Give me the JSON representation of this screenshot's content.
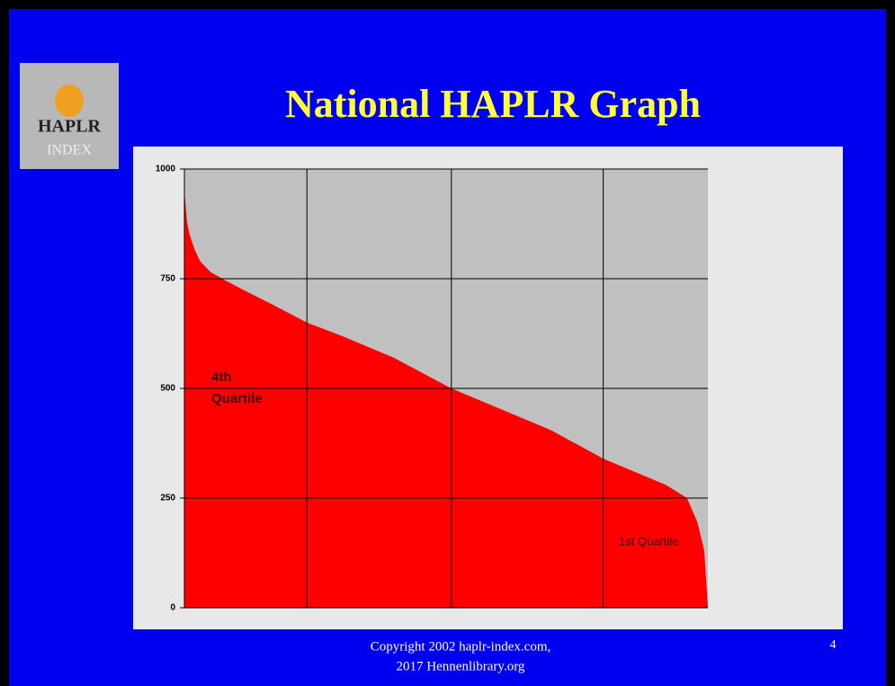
{
  "slide_title": "National HAPLR Graph",
  "logo": {
    "text": "HAPLR",
    "subtext": "INDEX"
  },
  "footer": [
    "Copyright 2002 haplr-index.com,",
    "2017  Hennenlibrary.org"
  ],
  "page_number": "4",
  "chart_data": {
    "type": "area",
    "x": [
      0,
      0.5,
      1,
      2,
      3,
      5,
      8,
      12,
      17,
      23.4,
      30,
      40,
      51,
      60,
      70,
      80,
      88,
      92,
      96,
      98,
      99.3,
      100
    ],
    "values": [
      950,
      880,
      850,
      815,
      790,
      765,
      745,
      720,
      690,
      650,
      620,
      570,
      500,
      455,
      405,
      340,
      300,
      280,
      250,
      195,
      130,
      0
    ],
    "color": "#ff0000",
    "xlim": [
      0,
      100
    ],
    "xticks": [
      23.4,
      51,
      80
    ],
    "ylim": [
      0,
      1000
    ],
    "yticks": [
      0,
      250,
      500,
      750,
      1000
    ],
    "grid": true,
    "annotations": [
      {
        "lines": [
          "4th",
          "Quartile"
        ]
      },
      {
        "lines": [
          "1st Quartile"
        ]
      }
    ]
  }
}
